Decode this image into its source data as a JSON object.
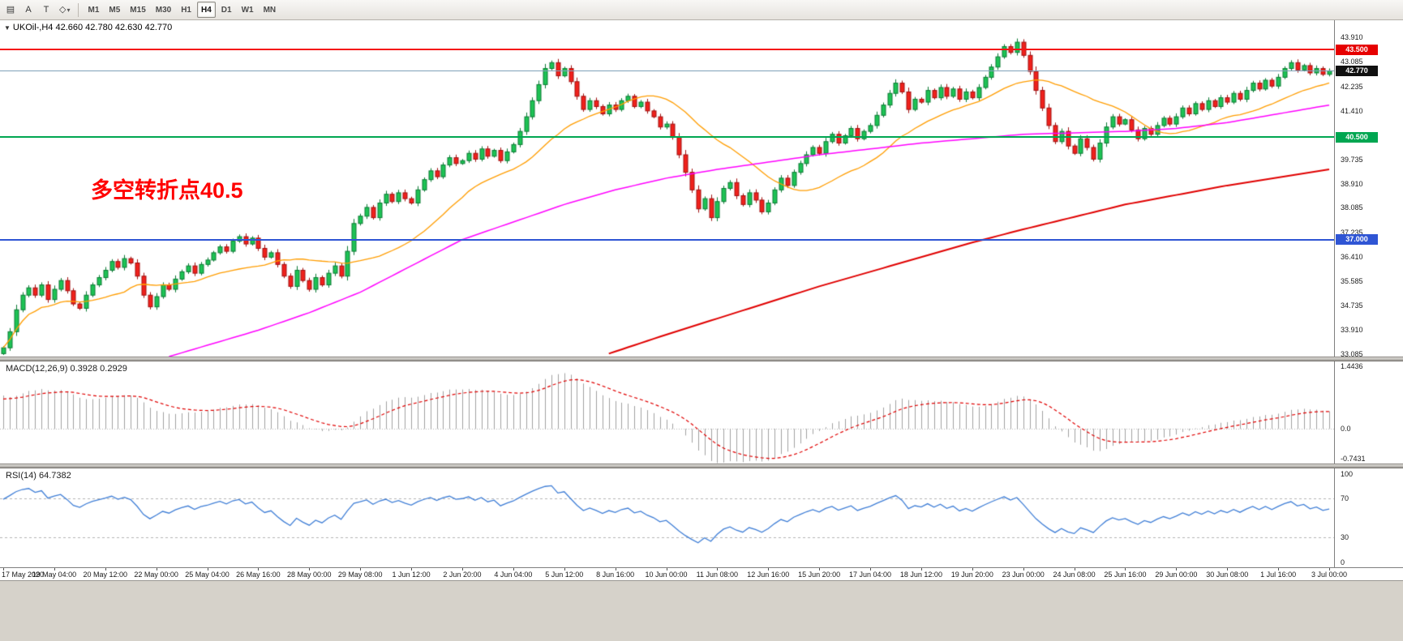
{
  "window": {
    "title": "UKOil-,H4"
  },
  "toolbar": {
    "icons": [
      {
        "name": "charts-icon",
        "glyph": "▤"
      },
      {
        "name": "cursor-tool-icon",
        "glyph": "A"
      },
      {
        "name": "text-tool-icon",
        "glyph": "T"
      },
      {
        "name": "shapes-tool-icon",
        "glyph": "◇"
      },
      {
        "name": "shapes-dropdown-caret",
        "glyph": "▾"
      }
    ],
    "timeframes": [
      "M1",
      "M5",
      "M15",
      "M30",
      "H1",
      "H4",
      "D1",
      "W1",
      "MN"
    ],
    "active_timeframe": "H4"
  },
  "chart": {
    "symbol_ohlc_title": "UKOil-,H4 42.660 42.780 42.630 42.770",
    "collapse_arrow": "▼",
    "annotation": "多空转折点40.5",
    "annotation_color": "#ff0000",
    "y_tick_labels": [
      "43.910",
      "43.085",
      "42.235",
      "41.410",
      "39.735",
      "38.910",
      "38.085",
      "37.235",
      "36.410",
      "35.585",
      "34.735",
      "33.910",
      "33.085"
    ],
    "hlines": [
      {
        "price": 43.5,
        "label": "43.500",
        "line_color": "#f51515",
        "badge_bg": "#e60000",
        "thickness": 2
      },
      {
        "price": 42.77,
        "label": "42.770",
        "line_color": "#7fa0b8",
        "badge_bg": "#101010",
        "thickness": 1
      },
      {
        "price": 40.5,
        "label": "40.500",
        "line_color": "#00a651",
        "badge_bg": "#00a651",
        "thickness": 2
      },
      {
        "price": 37.0,
        "label": "37.000",
        "line_color": "#2f55d4",
        "badge_bg": "#2f55d4",
        "thickness": 2
      }
    ]
  },
  "macd": {
    "label": "MACD(12,26,9) 0.3928 0.2929",
    "y_ticks": [
      {
        "label": "1.4436",
        "value": 1.4436
      },
      {
        "label": "0.0",
        "value": 0
      },
      {
        "label": "-0.7431",
        "value": -0.7431
      }
    ]
  },
  "rsi": {
    "label": "RSI(14) 64.7382",
    "y_ticks": [
      {
        "label": "100",
        "value": 100
      },
      {
        "label": "70",
        "value": 70
      },
      {
        "label": "30",
        "value": 30
      },
      {
        "label": "0",
        "value": 0
      }
    ]
  },
  "time_axis_labels": [
    "17 May 2020",
    "19 May 04:00",
    "20 May 12:00",
    "22 May 00:00",
    "25 May 04:00",
    "26 May 16:00",
    "28 May 00:00",
    "29 May 08:00",
    "1 Jun 12:00",
    "2 Jun 20:00",
    "4 Jun 04:00",
    "5 Jun 12:00",
    "8 Jun 16:00",
    "10 Jun 00:00",
    "11 Jun 08:00",
    "12 Jun 16:00",
    "15 Jun 20:00",
    "17 Jun 04:00",
    "18 Jun 12:00",
    "19 Jun 20:00",
    "23 Jun 00:00",
    "24 Jun 08:00",
    "25 Jun 16:00",
    "29 Jun 00:00",
    "30 Jun 08:00",
    "1 Jul 16:00",
    "3 Jul 00:00"
  ],
  "chart_data": {
    "type": "candlestick",
    "symbol": "UKOil-",
    "timeframe": "H4",
    "title": "UKOil-,H4",
    "bars_per_time_label": 8,
    "price": {
      "price_range": [
        33.0,
        44.5
      ],
      "first_open": 33.1,
      "open_rule": "open[i] = close[i-1]",
      "current_bar_ohlc": [
        42.66,
        42.78,
        42.63,
        42.77
      ],
      "current_bid": 42.77,
      "horizontal_levels": [
        43.5,
        40.5,
        37.0
      ],
      "close": [
        33.3,
        33.85,
        34.6,
        35.1,
        35.35,
        35.1,
        35.45,
        34.95,
        35.3,
        35.6,
        35.25,
        34.8,
        34.65,
        35.1,
        35.45,
        35.7,
        35.95,
        36.25,
        36.05,
        36.35,
        36.2,
        35.75,
        35.1,
        34.7,
        35.05,
        35.45,
        35.3,
        35.65,
        35.9,
        36.1,
        35.85,
        36.15,
        36.3,
        36.55,
        36.75,
        36.6,
        36.95,
        37.1,
        36.85,
        37.05,
        36.7,
        36.4,
        36.55,
        36.15,
        35.75,
        35.4,
        35.95,
        35.6,
        35.3,
        35.7,
        35.45,
        35.85,
        36.1,
        35.75,
        36.6,
        37.55,
        37.8,
        38.1,
        37.75,
        38.25,
        38.55,
        38.3,
        38.6,
        38.4,
        38.25,
        38.7,
        39.05,
        39.35,
        39.15,
        39.55,
        39.8,
        39.6,
        39.7,
        39.95,
        39.75,
        40.1,
        39.85,
        40.05,
        39.7,
        40.0,
        40.25,
        40.7,
        41.2,
        41.75,
        42.3,
        42.85,
        43.05,
        42.6,
        42.85,
        42.4,
        41.9,
        41.45,
        41.75,
        41.55,
        41.3,
        41.6,
        41.45,
        41.75,
        41.9,
        41.55,
        41.7,
        41.4,
        41.2,
        40.85,
        40.95,
        40.5,
        39.9,
        39.3,
        38.7,
        38.05,
        38.4,
        37.75,
        38.3,
        38.75,
        38.95,
        38.5,
        38.2,
        38.6,
        38.35,
        37.95,
        38.25,
        38.7,
        39.1,
        38.85,
        39.3,
        39.6,
        39.9,
        40.15,
        39.95,
        40.35,
        40.6,
        40.3,
        40.55,
        40.8,
        40.45,
        40.7,
        40.9,
        41.25,
        41.6,
        42.0,
        42.35,
        42.05,
        41.45,
        41.8,
        41.7,
        42.1,
        41.85,
        42.2,
        41.9,
        42.15,
        41.8,
        42.05,
        41.85,
        42.2,
        42.55,
        42.9,
        43.25,
        43.6,
        43.4,
        43.75,
        43.3,
        42.75,
        42.1,
        41.5,
        40.9,
        40.35,
        40.7,
        40.2,
        39.95,
        40.45,
        40.15,
        39.75,
        40.3,
        40.85,
        41.2,
        40.95,
        41.1,
        40.75,
        40.45,
        40.8,
        40.6,
        40.9,
        41.15,
        40.95,
        41.2,
        41.5,
        41.3,
        41.65,
        41.45,
        41.75,
        41.55,
        41.85,
        41.7,
        42.0,
        41.8,
        42.1,
        42.35,
        42.15,
        42.45,
        42.25,
        42.55,
        42.85,
        43.05,
        42.8,
        42.95,
        42.7,
        42.85,
        42.65,
        42.77
      ],
      "candle_up_fill": "#1ec355",
      "candle_up_border": "#0a7a33",
      "candle_down_fill": "#f0211c",
      "candle_down_border": "#a01010"
    },
    "overlays": {
      "ma_fast": {
        "type": "sma",
        "period": 20,
        "color": "#ff9d00"
      },
      "ma_mid": {
        "color": "#ff00ff",
        "anchors": [
          [
            26,
            33.0
          ],
          [
            40,
            33.9
          ],
          [
            48,
            34.5
          ],
          [
            56,
            35.2
          ],
          [
            64,
            36.1
          ],
          [
            72,
            37.0
          ],
          [
            80,
            37.6
          ],
          [
            88,
            38.2
          ],
          [
            96,
            38.7
          ],
          [
            104,
            39.1
          ],
          [
            112,
            39.4
          ],
          [
            120,
            39.65
          ],
          [
            128,
            39.9
          ],
          [
            136,
            40.1
          ],
          [
            144,
            40.3
          ],
          [
            152,
            40.45
          ],
          [
            160,
            40.6
          ],
          [
            168,
            40.65
          ],
          [
            176,
            40.7
          ],
          [
            184,
            40.8
          ],
          [
            192,
            41.0
          ],
          [
            200,
            41.3
          ],
          [
            208,
            41.6
          ]
        ]
      },
      "ma_slow": {
        "color": "#e00000",
        "anchors": [
          [
            95,
            33.1
          ],
          [
            104,
            33.75
          ],
          [
            112,
            34.3
          ],
          [
            120,
            34.85
          ],
          [
            128,
            35.4
          ],
          [
            136,
            35.9
          ],
          [
            144,
            36.4
          ],
          [
            152,
            36.9
          ],
          [
            160,
            37.35
          ],
          [
            176,
            38.2
          ],
          [
            192,
            38.85
          ],
          [
            208,
            39.4
          ]
        ]
      }
    },
    "macd": {
      "params": [
        12,
        26,
        9
      ],
      "current_values": [
        0.3928,
        0.2929
      ],
      "range": [
        -0.7431,
        1.4436
      ],
      "hist_color": "#a0a0a0",
      "signal_color": "#e00000"
    },
    "rsi": {
      "period": 14,
      "current": 64.7382,
      "range": [
        0,
        100
      ],
      "levels": [
        70,
        30
      ],
      "color": "#3f7ed6",
      "level_color": "#b4b4b4"
    }
  }
}
